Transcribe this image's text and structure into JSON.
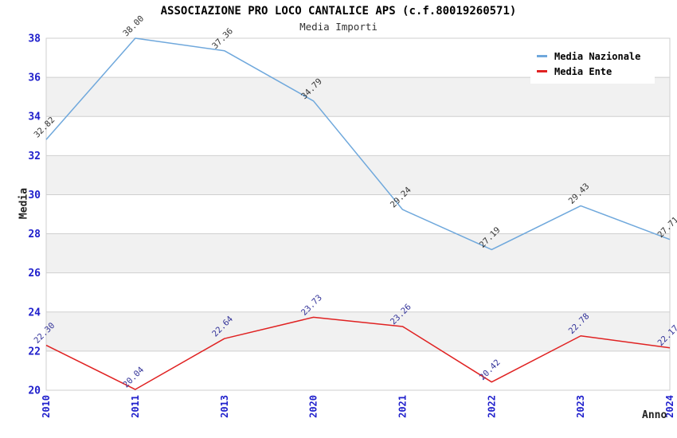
{
  "chart_data": {
    "type": "line",
    "title": "ASSOCIAZIONE PRO LOCO CANTALICE APS (c.f.80019260571)",
    "subtitle": "Media Importi",
    "xlabel": "Anno",
    "ylabel": "Media",
    "categories": [
      "2010",
      "2011",
      "2013",
      "2020",
      "2021",
      "2022",
      "2023",
      "2024"
    ],
    "series": [
      {
        "name": "Media Nazionale",
        "color": "#6FA8DC",
        "label_color": "#333333",
        "values": [
          32.82,
          38.0,
          37.36,
          34.79,
          29.24,
          27.19,
          29.43,
          27.71
        ]
      },
      {
        "name": "Media Ente",
        "color": "#E02222",
        "label_color": "#333399",
        "values": [
          22.3,
          20.04,
          22.64,
          23.73,
          23.26,
          20.42,
          22.78,
          22.17
        ]
      }
    ],
    "ylim": [
      20,
      38
    ],
    "ytick_step": 2,
    "value_label_decimals": 2,
    "grid": true,
    "legend_position": "top-right",
    "colors": {
      "grid": "#CFCFCF",
      "band": "#F1F1F1",
      "tick_label": "#2020CC",
      "axis_title": "#222222",
      "background": "#FFFFFF"
    }
  }
}
